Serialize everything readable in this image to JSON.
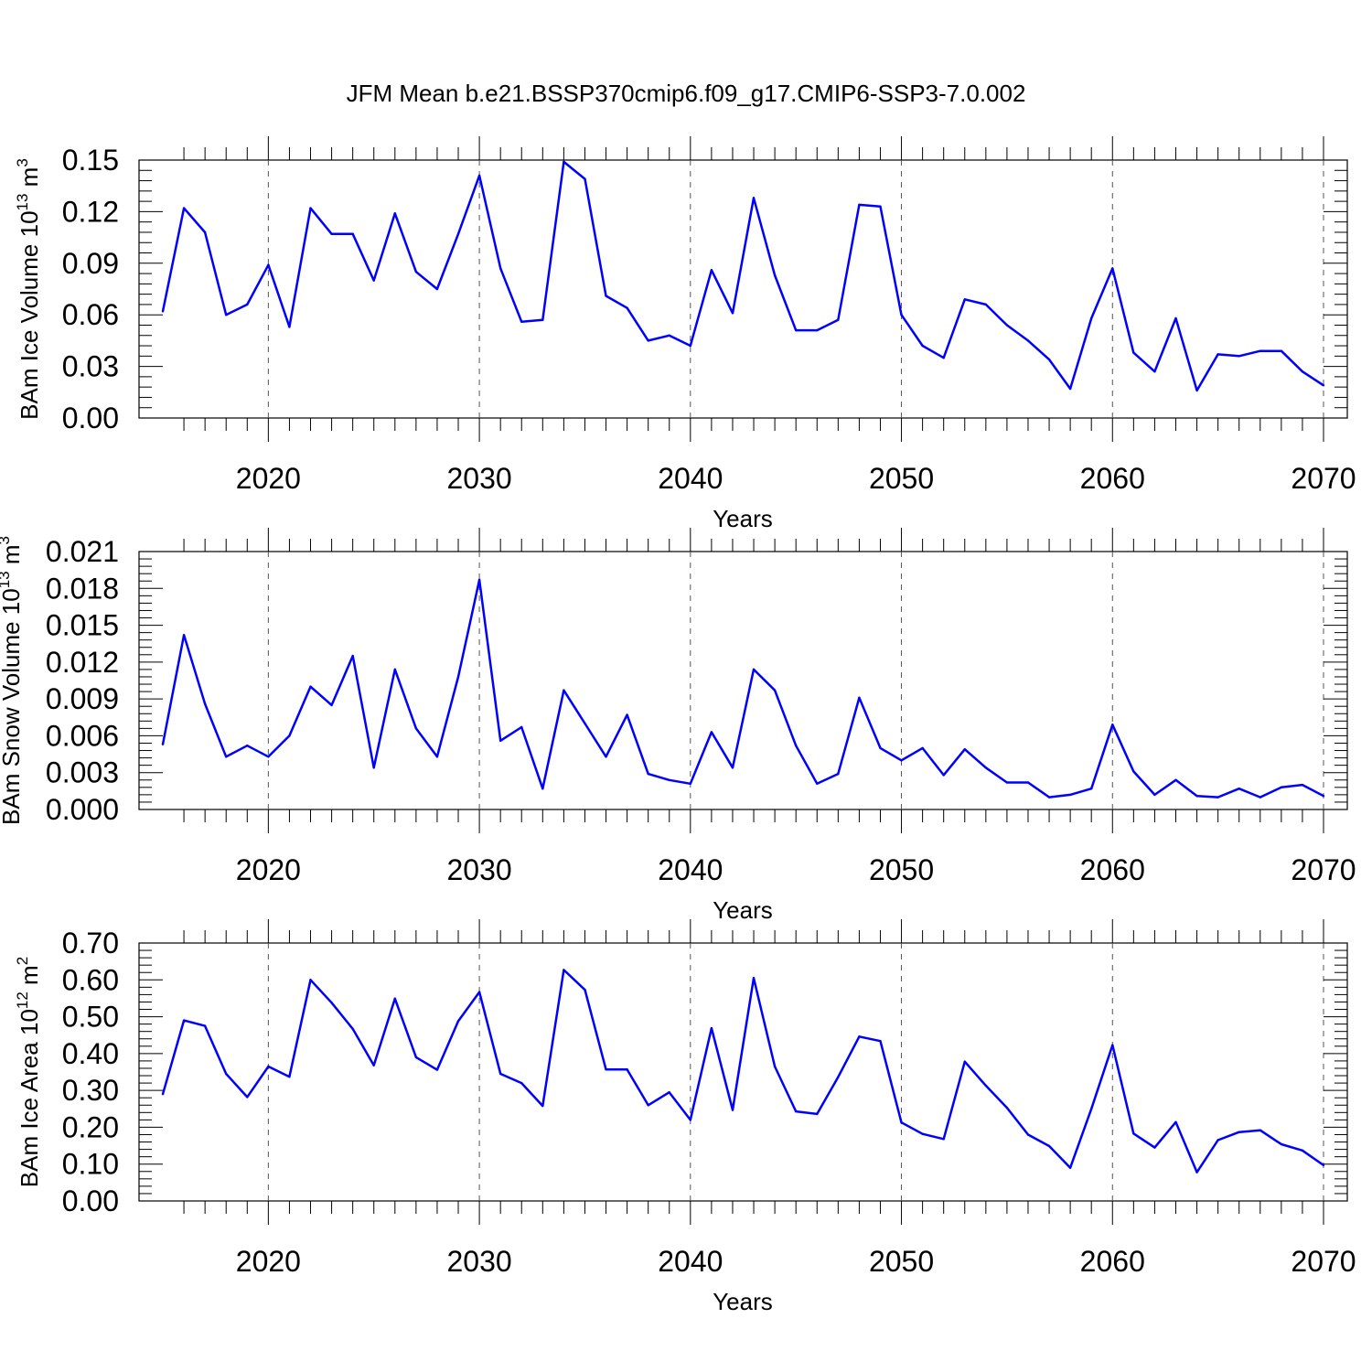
{
  "title": "JFM Mean b.e21.BSSP370cmip6.f09_g17.CMIP6-SSP3-7.0.002",
  "chart_data": [
    {
      "type": "line",
      "xlabel": "Years",
      "ylabel": {
        "text": "BAm Ice Volume 10",
        "exp": "13",
        "unit": " m",
        "unit_exp": "3"
      },
      "xlim": [
        2015,
        2070
      ],
      "ylim": [
        0,
        0.15
      ],
      "xticks": [
        "2020",
        "2030",
        "2040",
        "2050",
        "2060",
        "2070"
      ],
      "yticks": [
        "0.00",
        "0.03",
        "0.06",
        "0.09",
        "0.12",
        "0.15"
      ],
      "x": [
        2015,
        2016,
        2017,
        2018,
        2019,
        2020,
        2021,
        2022,
        2023,
        2024,
        2025,
        2026,
        2027,
        2028,
        2029,
        2030,
        2031,
        2032,
        2033,
        2034,
        2035,
        2036,
        2037,
        2038,
        2039,
        2040,
        2041,
        2042,
        2043,
        2044,
        2045,
        2046,
        2047,
        2048,
        2049,
        2050,
        2051,
        2052,
        2053,
        2054,
        2055,
        2056,
        2057,
        2058,
        2059,
        2060,
        2061,
        2062,
        2063,
        2064,
        2065,
        2066,
        2067,
        2068,
        2069,
        2070
      ],
      "values": [
        0.062,
        0.122,
        0.108,
        0.06,
        0.066,
        0.089,
        0.053,
        0.122,
        0.107,
        0.107,
        0.08,
        0.119,
        0.085,
        0.075,
        0.107,
        0.141,
        0.087,
        0.056,
        0.057,
        0.149,
        0.139,
        0.071,
        0.064,
        0.045,
        0.048,
        0.042,
        0.086,
        0.061,
        0.128,
        0.083,
        0.051,
        0.051,
        0.057,
        0.124,
        0.123,
        0.06,
        0.042,
        0.035,
        0.069,
        0.066,
        0.054,
        0.045,
        0.034,
        0.017,
        0.058,
        0.087,
        0.038,
        0.027,
        0.058,
        0.016,
        0.037,
        0.036,
        0.039,
        0.039,
        0.027,
        0.019
      ]
    },
    {
      "type": "line",
      "xlabel": "Years",
      "ylabel": {
        "text": "BAm Snow Volume 10",
        "exp": "13",
        "unit": " m",
        "unit_exp": "3"
      },
      "xlim": [
        2015,
        2070
      ],
      "ylim": [
        0,
        0.021
      ],
      "xticks": [
        "2020",
        "2030",
        "2040",
        "2050",
        "2060",
        "2070"
      ],
      "yticks": [
        "0.000",
        "0.003",
        "0.006",
        "0.009",
        "0.012",
        "0.015",
        "0.018",
        "0.021"
      ],
      "x": [
        2015,
        2016,
        2017,
        2018,
        2019,
        2020,
        2021,
        2022,
        2023,
        2024,
        2025,
        2026,
        2027,
        2028,
        2029,
        2030,
        2031,
        2032,
        2033,
        2034,
        2035,
        2036,
        2037,
        2038,
        2039,
        2040,
        2041,
        2042,
        2043,
        2044,
        2045,
        2046,
        2047,
        2048,
        2049,
        2050,
        2051,
        2052,
        2053,
        2054,
        2055,
        2056,
        2057,
        2058,
        2059,
        2060,
        2061,
        2062,
        2063,
        2064,
        2065,
        2066,
        2067,
        2068,
        2069,
        2070
      ],
      "values": [
        0.0053,
        0.0142,
        0.0086,
        0.0043,
        0.0052,
        0.0043,
        0.006,
        0.01,
        0.0085,
        0.0125,
        0.0034,
        0.0114,
        0.0066,
        0.0043,
        0.0108,
        0.0187,
        0.0056,
        0.0067,
        0.0017,
        0.0097,
        0.007,
        0.0043,
        0.0077,
        0.0029,
        0.0024,
        0.0021,
        0.0063,
        0.0034,
        0.0114,
        0.0097,
        0.0052,
        0.0021,
        0.0029,
        0.0091,
        0.005,
        0.004,
        0.005,
        0.0028,
        0.0049,
        0.0034,
        0.0022,
        0.0022,
        0.001,
        0.0012,
        0.0017,
        0.0069,
        0.0031,
        0.0012,
        0.0024,
        0.0011,
        0.001,
        0.0017,
        0.001,
        0.0018,
        0.002,
        0.0011
      ]
    },
    {
      "type": "line",
      "xlabel": "Years",
      "ylabel": {
        "text": "BAm Ice Area 10",
        "exp": "12",
        "unit": " m",
        "unit_exp": "2"
      },
      "xlim": [
        2015,
        2070
      ],
      "ylim": [
        0,
        0.7
      ],
      "xticks": [
        "2020",
        "2030",
        "2040",
        "2050",
        "2060",
        "2070"
      ],
      "yticks": [
        "0.00",
        "0.10",
        "0.20",
        "0.30",
        "0.40",
        "0.50",
        "0.60",
        "0.70"
      ],
      "x": [
        2015,
        2016,
        2017,
        2018,
        2019,
        2020,
        2021,
        2022,
        2023,
        2024,
        2025,
        2026,
        2027,
        2028,
        2029,
        2030,
        2031,
        2032,
        2033,
        2034,
        2035,
        2036,
        2037,
        2038,
        2039,
        2040,
        2041,
        2042,
        2043,
        2044,
        2045,
        2046,
        2047,
        2048,
        2049,
        2050,
        2051,
        2052,
        2053,
        2054,
        2055,
        2056,
        2057,
        2058,
        2059,
        2060,
        2061,
        2062,
        2063,
        2064,
        2065,
        2066,
        2067,
        2068,
        2069,
        2070
      ],
      "values": [
        0.29,
        0.49,
        0.475,
        0.345,
        0.282,
        0.365,
        0.337,
        0.6,
        0.538,
        0.467,
        0.368,
        0.549,
        0.39,
        0.356,
        0.488,
        0.567,
        0.345,
        0.32,
        0.258,
        0.627,
        0.573,
        0.357,
        0.357,
        0.26,
        0.295,
        0.22,
        0.469,
        0.247,
        0.605,
        0.365,
        0.243,
        0.236,
        0.336,
        0.446,
        0.434,
        0.213,
        0.182,
        0.168,
        0.378,
        0.313,
        0.253,
        0.18,
        0.149,
        0.09,
        0.25,
        0.423,
        0.183,
        0.145,
        0.214,
        0.078,
        0.165,
        0.187,
        0.192,
        0.154,
        0.137,
        0.097
      ]
    }
  ]
}
